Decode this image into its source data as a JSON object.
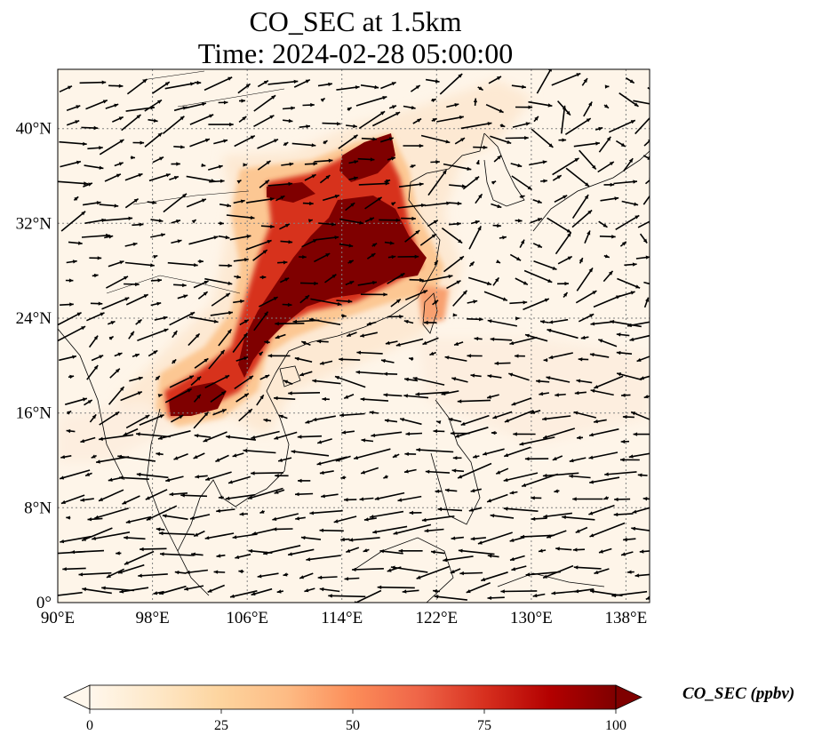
{
  "title": {
    "line1": "CO_SEC at 1.5km",
    "line2": "Time: 2024-02-28 05:00:00"
  },
  "map": {
    "lon_range": [
      90,
      140
    ],
    "lat_range": [
      0,
      45
    ],
    "lon_ticks": [
      "90°E",
      "98°E",
      "106°E",
      "114°E",
      "122°E",
      "130°E",
      "138°E"
    ],
    "lat_ticks": [
      "0°",
      "8°N",
      "16°N",
      "24°N",
      "32°N",
      "40°N"
    ],
    "gridlines": true,
    "colormap": "OrRd",
    "background_color": "#fef5e9",
    "plume_colors": [
      "#fde7cc",
      "#fcc08a",
      "#ef6547",
      "#c8150f",
      "#7f0000"
    ]
  },
  "colorbar": {
    "label": "CO_SEC (ppbv)",
    "ticks": [
      "0",
      "25",
      "50",
      "75",
      "100"
    ],
    "range": [
      0,
      100
    ],
    "extend": "both",
    "gradient": [
      "#fff7ec",
      "#fee8c8",
      "#fdd49e",
      "#fdbb84",
      "#fc8d59",
      "#ef6548",
      "#d7301f",
      "#b30000",
      "#7f0000"
    ]
  }
}
